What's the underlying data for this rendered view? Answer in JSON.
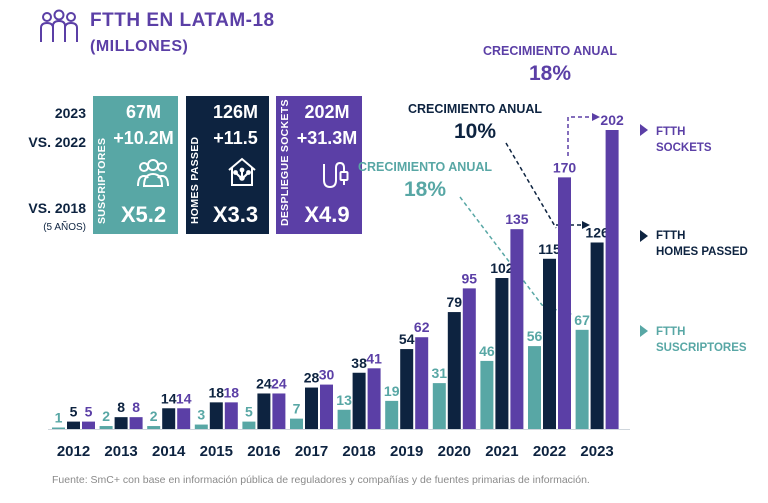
{
  "header": {
    "title_line1": "FTTH EN LATAM-18",
    "title_line2": "(MILLONES)",
    "icon": "people-group-icon"
  },
  "comparison_labels": {
    "year_line1": "2023",
    "year_line2": "VS. 2022",
    "since_line1": "VS. 2018",
    "since_line2": "(5 AÑOS)"
  },
  "kpi_boxes": [
    {
      "label": "SUSCRIPTORES",
      "total": "67M",
      "yoy": "+10.2M",
      "multiple": "X5.2",
      "icon": "people-icon",
      "color": "#58a7a5"
    },
    {
      "label": "HOMES PASSED",
      "total": "126M",
      "yoy": "+11.5",
      "multiple": "X3.3",
      "icon": "smart-home-icon",
      "color": "#0d2340"
    },
    {
      "label": "DESPLIEGUE SOCKETS",
      "total": "202M",
      "yoy": "+31.3M",
      "multiple": "X4.9",
      "icon": "fiber-cable-icon",
      "color": "#5b3fa6"
    }
  ],
  "growth_callouts": [
    {
      "label": "CRECIMIENTO ANUAL",
      "value": "18%",
      "color": "#5b3fa6"
    },
    {
      "label": "CRECIMIENTO ANUAL",
      "value": "10%",
      "color": "#0d2340"
    },
    {
      "label": "CRECIMIENTO ANUAL",
      "value": "18%",
      "color": "#58a7a5"
    }
  ],
  "legend": [
    {
      "line1": "FTTH",
      "line2": "SOCKETS",
      "color": "#5b3fa6"
    },
    {
      "line1": "FTTH",
      "line2": "HOMES PASSED",
      "color": "#0d2340"
    },
    {
      "line1": "FTTH",
      "line2": "SUSCRIPTORES",
      "color": "#58a7a5"
    }
  ],
  "source": "Fuente: SmC+ con base en información pública de reguladores y compañías y de fuentes primarias de información.",
  "chart_data": {
    "type": "bar",
    "categories": [
      "2012",
      "2013",
      "2014",
      "2015",
      "2016",
      "2017",
      "2018",
      "2019",
      "2020",
      "2021",
      "2022",
      "2023"
    ],
    "series": [
      {
        "name": "FTTH SUSCRIPTORES",
        "color": "#58a7a5",
        "values": [
          1,
          2,
          2,
          3,
          5,
          7,
          13,
          19,
          31,
          46,
          56,
          67
        ]
      },
      {
        "name": "FTTH HOMES PASSED",
        "color": "#0d2340",
        "values": [
          5,
          8,
          14,
          18,
          24,
          28,
          38,
          54,
          79,
          102,
          115,
          126
        ]
      },
      {
        "name": "FTTH SOCKETS",
        "color": "#5b3fa6",
        "values": [
          5,
          8,
          14,
          18,
          24,
          30,
          41,
          62,
          95,
          135,
          170,
          202
        ]
      }
    ],
    "ylim": [
      0,
      202
    ]
  }
}
